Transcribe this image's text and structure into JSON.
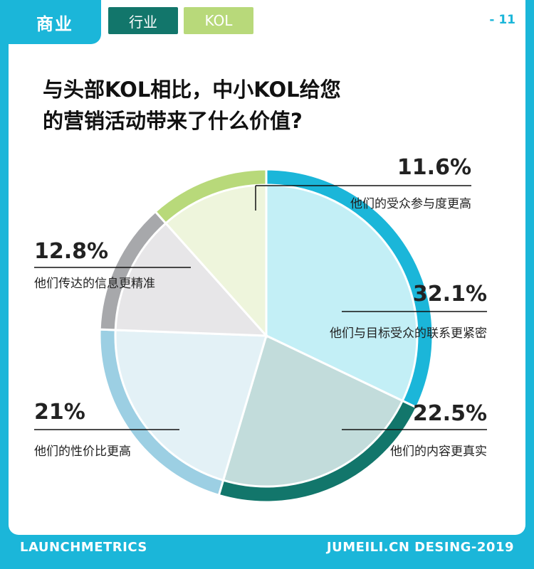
{
  "header": {
    "section": "商业",
    "tabs": [
      {
        "label": "行业"
      },
      {
        "label": "KOL"
      }
    ],
    "page_number": "- 11"
  },
  "chart_data": {
    "type": "pie",
    "title_lines": [
      "与头部KOL相比，中小KOL给您",
      "的营销活动带来了什么价值?"
    ],
    "slices": [
      {
        "label": "他们与目标受众的联系更紧密",
        "value": 32.1,
        "pct_label": "32.1%",
        "inner": "#c3eff6",
        "outer": "#1bb6d9"
      },
      {
        "label": "他们的内容更真实",
        "value": 22.5,
        "pct_label": "22.5%",
        "inner": "#c2dcdb",
        "outer": "#12766b"
      },
      {
        "label": "他们的性价比更高",
        "value": 21,
        "pct_label": "21%",
        "inner": "#e3f1f6",
        "outer": "#9ccfe3"
      },
      {
        "label": "他们传达的信息更精准",
        "value": 12.8,
        "pct_label": "12.8%",
        "inner": "#e7e6e8",
        "outer": "#a7a8ab"
      },
      {
        "label": "他们的受众参与度更高",
        "value": 11.6,
        "pct_label": "11.6%",
        "inner": "#eef5dc",
        "outer": "#b8d97a"
      }
    ]
  },
  "footer": {
    "left": "LAUNCHMETRICS",
    "right": "JUMEILI.CN DESING-2019"
  }
}
